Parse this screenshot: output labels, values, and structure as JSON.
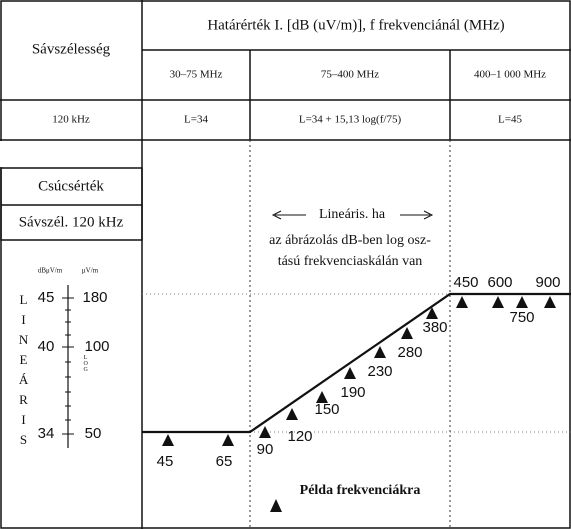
{
  "table": {
    "title": "Határérték I. [dB (uV/m)], f frekvenciánál (MHz)",
    "row_header": "Sávszélesség",
    "columns": [
      "30–75 MHz",
      "75–400 MHz",
      "400–1 000 MHz"
    ],
    "rows": [
      [
        "120 kHz",
        "L=34",
        "L=34 + 15,13 log(f/75)",
        "L=45"
      ]
    ]
  },
  "legend": {
    "detector": "Csúcsérték",
    "bandwidth": "Sávszél. 120 kHz"
  },
  "scale": {
    "db_unit": "dBμV/m",
    "uv_unit": "μV/m",
    "db_ticks": [
      "45",
      "40",
      "34"
    ],
    "uv_ticks": [
      "180",
      "100",
      "50"
    ],
    "linear": "LINEÁRIS",
    "log": "LOG"
  },
  "note": {
    "line1": "Lineáris. ha",
    "line2": "az ábrázolás dB-ben log osz-",
    "line3": "tású frekvenciaskálán van"
  },
  "example_frequencies": [
    45,
    65,
    90,
    120,
    150,
    190,
    230,
    280,
    380,
    450,
    600,
    750,
    900
  ],
  "example_label": "Példa frekvenciákra"
}
